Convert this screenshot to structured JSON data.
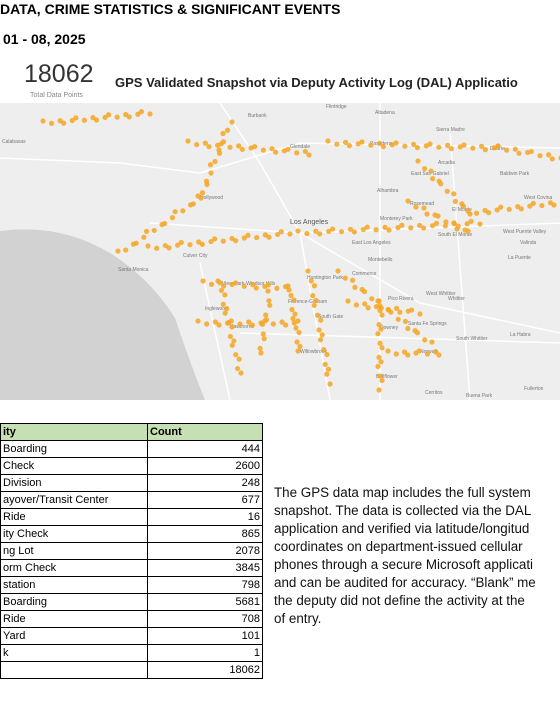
{
  "header": {
    "title": "DATA, CRIME STATISTICS & SIGNIFICANT EVENTS",
    "date_range": "01 - 08, 2025"
  },
  "kpi": {
    "value": 18062,
    "label": "Total Data Points"
  },
  "map": {
    "title": "GPS Validated Snapshot via Deputy Activity Log (DAL) Applicatio",
    "places": [
      "Burbank",
      "Altadena",
      "Sierra Madre",
      "Glendale",
      "Pasadena",
      "Arcadia",
      "Calabasas",
      "Duarte",
      "East San Gabriel",
      "Alhambra",
      "Baldwin Park",
      "West Covina",
      "Hollywood",
      "Rosemead",
      "El Monte",
      "Monterey Park",
      "Los Angeles",
      "South El Monte",
      "West Puente Valley",
      "East Los Angeles",
      "Santa Monica",
      "Culver City",
      "Montebello",
      "La Puente",
      "View Park-Windsor Hills",
      "Huntington Park",
      "Commerce",
      "West Whittier",
      "Whittier",
      "Inglewood",
      "Florence-Graham",
      "Pico Rivera",
      "South Gate",
      "Downey",
      "Santa Fe Springs",
      "Hawthorne",
      "Norwalk",
      "South Whittier",
      "La Habra",
      "Willowbrook",
      "Bellflower",
      "Cerritos",
      "Buena Park",
      "Fullerton",
      "Flintridge",
      "Valinda"
    ]
  },
  "table": {
    "columns": [
      "ity",
      "Count"
    ],
    "rows": [
      [
        "Boarding",
        444
      ],
      [
        "Check",
        2600
      ],
      [
        "Division",
        248
      ],
      [
        "ayover/Transit Center",
        677
      ],
      [
        "Ride",
        16
      ],
      [
        "ity Check",
        865
      ],
      [
        "ng Lot",
        2078
      ],
      [
        "orm Check",
        3845
      ],
      [
        "station",
        798
      ],
      [
        "Boarding",
        5681
      ],
      [
        "Ride",
        708
      ],
      [
        "Yard",
        101
      ],
      [
        "k",
        1
      ]
    ],
    "total": 18062
  },
  "note": {
    "lines": [
      "The GPS data map includes the full system",
      "snapshot. The data is collected via the DAL",
      "application and verified via latitude/longitud",
      "coordinates on department-issued cellular",
      "phones through a secure Microsoft applicati",
      "and can be audited for accuracy. “Blank” me",
      "the deputy did not define the activity at the",
      "of entry."
    ]
  }
}
